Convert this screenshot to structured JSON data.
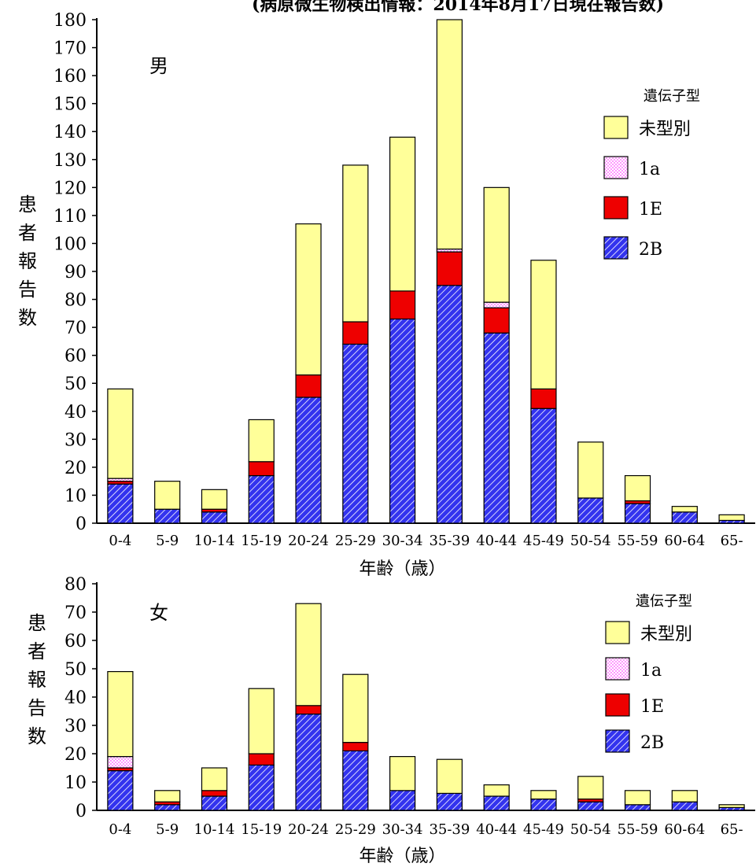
{
  "header_note": "(病原微生物検出情報：2014年8月17日現在報告数)",
  "colors": {
    "unknown": "#ffff99",
    "1a": "#ff99ff",
    "1E": "#ee0000",
    "2B": "#3333ee"
  },
  "chart_data": [
    {
      "type": "bar",
      "stacked": true,
      "panel_label": "男",
      "ylabel": "患者報告数",
      "xlabel": "年齢（歳）",
      "ylim": [
        0,
        180
      ],
      "ytick_step": 10,
      "legend_title": "遺伝子型",
      "legend_position": "right",
      "categories": [
        "0-4",
        "5-9",
        "10-14",
        "15-19",
        "20-24",
        "25-29",
        "30-34",
        "35-39",
        "40-44",
        "45-49",
        "50-54",
        "55-59",
        "60-64",
        "65-"
      ],
      "series": [
        {
          "name": "2B",
          "values": [
            14,
            5,
            4,
            17,
            45,
            64,
            73,
            85,
            68,
            41,
            9,
            7,
            4,
            1
          ]
        },
        {
          "name": "1E",
          "values": [
            1,
            0,
            1,
            5,
            8,
            8,
            10,
            12,
            9,
            7,
            0,
            1,
            0,
            0
          ]
        },
        {
          "name": "1a",
          "values": [
            1,
            0,
            0,
            0,
            0,
            0,
            0,
            1,
            2,
            0,
            0,
            0,
            0,
            0
          ]
        },
        {
          "name": "未型別",
          "values": [
            32,
            10,
            7,
            15,
            54,
            56,
            55,
            82,
            41,
            46,
            20,
            9,
            2,
            2
          ]
        }
      ]
    },
    {
      "type": "bar",
      "stacked": true,
      "panel_label": "女",
      "ylabel": "患者報告数",
      "xlabel": "年齢（歳）",
      "ylim": [
        0,
        80
      ],
      "ytick_step": 10,
      "legend_title": "遺伝子型",
      "legend_position": "right",
      "categories": [
        "0-4",
        "5-9",
        "10-14",
        "15-19",
        "20-24",
        "25-29",
        "30-34",
        "35-39",
        "40-44",
        "45-49",
        "50-54",
        "55-59",
        "60-64",
        "65-"
      ],
      "series": [
        {
          "name": "2B",
          "values": [
            14,
            2,
            5,
            16,
            34,
            21,
            7,
            6,
            5,
            4,
            3,
            2,
            3,
            1
          ]
        },
        {
          "name": "1E",
          "values": [
            1,
            1,
            2,
            4,
            3,
            3,
            0,
            0,
            0,
            0,
            1,
            0,
            0,
            0
          ]
        },
        {
          "name": "1a",
          "values": [
            4,
            0,
            0,
            0,
            0,
            0,
            0,
            0,
            0,
            0,
            0,
            0,
            0,
            0
          ]
        },
        {
          "name": "未型別",
          "values": [
            30,
            4,
            8,
            23,
            36,
            24,
            12,
            12,
            4,
            3,
            8,
            5,
            4,
            1
          ]
        }
      ]
    }
  ]
}
